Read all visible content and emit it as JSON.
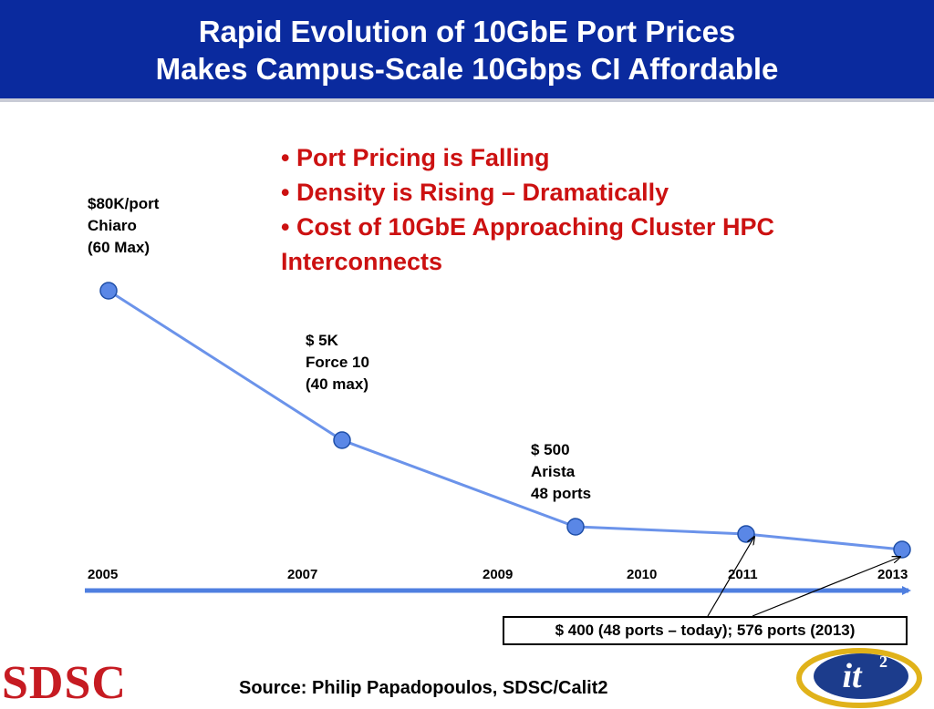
{
  "header": {
    "title_line1": "Rapid Evolution of 10GbE Port Prices",
    "title_line2": "Makes Campus-Scale 10Gbps CI Affordable"
  },
  "bullets": [
    "• Port Pricing is Falling",
    "• Density is Rising – Dramatically",
    "• Cost of 10GbE Approaching Cluster HPC",
    "Interconnects"
  ],
  "chart_data": {
    "type": "line",
    "x": [
      "2005",
      "2007",
      "2009",
      "2010",
      "2011",
      "2013"
    ],
    "series": [
      {
        "values": [
          {
            "x": "2005",
            "y": 80000
          },
          {
            "x": "2007",
            "y": 5000
          },
          {
            "x": "2010",
            "y": 500
          },
          {
            "x": "2011",
            "y": 400
          },
          {
            "x": "2013",
            "y": 400
          }
        ]
      }
    ],
    "point_labels": [
      {
        "lines": [
          "$80K/port",
          "Chiaro",
          "(60 Max)"
        ]
      },
      {
        "lines": [
          "$ 5K",
          "Force 10",
          "(40 max)"
        ]
      },
      {
        "lines": [
          "$ 500",
          "Arista",
          "48 ports"
        ]
      }
    ],
    "callout": "$ 400 (48 ports – today); 576 ports (2013)",
    "colors": {
      "line": "#6b93ea",
      "marker": "#5a87e6",
      "axis_arrow": "#4f7fe0"
    }
  },
  "footer": {
    "source": "Source:  Philip Papadopoulos, SDSC/Calit2",
    "logo_left": "SDSC",
    "logo_right": "it2"
  }
}
